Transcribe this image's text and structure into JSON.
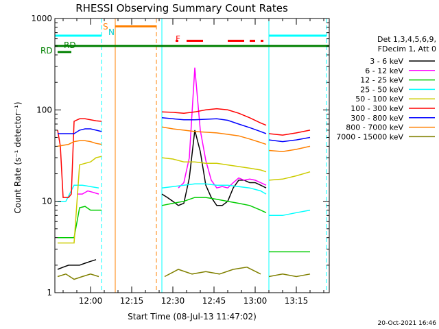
{
  "chart_data": {
    "type": "line",
    "title": "RHESSI Observing Summary Count Rates",
    "xlabel": "Start Time (08-Jul-13 11:47:02)",
    "ylabel": "Count Rate (s⁻¹ detector⁻¹)",
    "y_scale": "log",
    "xlim": [
      "11:47",
      "13:27"
    ],
    "ylim": [
      1,
      1000
    ],
    "x_ticks": [
      "12:00",
      "12:15",
      "12:30",
      "12:45",
      "13:00",
      "13:15"
    ],
    "y_ticks": [
      "1",
      "10",
      "100",
      "1000"
    ],
    "grid": false,
    "legend_position": "right",
    "legend_header": [
      "Det 1,3,4,5,6,9,",
      "FDecim 1, Att 0"
    ],
    "timestamp": "20-Oct-2021 16:46",
    "annotations": {
      "saa_letter": "S",
      "night_letter": "N",
      "flare_letter": "F",
      "rd_top": "RD",
      "rd_bottom": "RD"
    },
    "series": [
      {
        "name": "3 - 6 keV",
        "color": "#000000",
        "segments": [
          {
            "x": [
              "11:48",
              "11:50",
              "11:52",
              "11:54",
              "11:56",
              "11:58",
              "12:00",
              "12:02"
            ],
            "y": [
              1.8,
              1.9,
              2.0,
              2.0,
              2.0,
              2.1,
              2.2,
              2.3
            ]
          },
          {
            "x": [
              "12:26",
              "12:28",
              "12:30",
              "12:32",
              "12:34",
              "12:36",
              "12:38",
              "12:40",
              "12:42",
              "12:44",
              "12:46",
              "12:48",
              "12:50",
              "12:52",
              "12:54",
              "12:56",
              "12:58",
              "13:00",
              "13:02",
              "13:04"
            ],
            "y": [
              12.0,
              11.0,
              10.0,
              9.0,
              9.5,
              18.0,
              60.0,
              35.0,
              15.0,
              11.0,
              9.0,
              9.0,
              10.0,
              14.0,
              17.0,
              17.0,
              16.0,
              16.0,
              15.0,
              14.0
            ]
          }
        ]
      },
      {
        "name": "6 - 12 keV",
        "color": "#ff00ff",
        "segments": [
          {
            "x": [
              "11:55",
              "11:57",
              "11:59",
              "12:01",
              "12:03"
            ],
            "y": [
              12.0,
              12.0,
              13.0,
              12.5,
              12.0
            ]
          },
          {
            "x": [
              "12:32",
              "12:34",
              "12:36",
              "12:38",
              "12:40",
              "12:42",
              "12:44",
              "12:46",
              "12:48",
              "12:50",
              "12:52",
              "12:54",
              "12:56",
              "12:58",
              "13:00",
              "13:02",
              "13:04"
            ],
            "y": [
              14.0,
              16.0,
              30.0,
              290.0,
              60.0,
              28.0,
              17.0,
              14.0,
              14.5,
              14.0,
              16.0,
              18.0,
              17.0,
              17.5,
              17.0,
              16.0,
              15.0
            ]
          }
        ]
      },
      {
        "name": "12 - 25 keV",
        "color": "#00cc00",
        "segments": [
          {
            "x": [
              "11:48",
              "11:50",
              "11:52",
              "11:54",
              "11:56",
              "11:58",
              "12:00",
              "12:02",
              "12:04"
            ],
            "y": [
              4.0,
              4.0,
              4.0,
              4.0,
              8.5,
              8.8,
              8.0,
              8.0,
              8.0
            ]
          },
          {
            "x": [
              "12:26",
              "12:30",
              "12:34",
              "12:38",
              "12:42",
              "12:46",
              "12:50",
              "12:54",
              "12:58",
              "13:02",
              "13:04"
            ],
            "y": [
              9.0,
              9.5,
              10.0,
              11.0,
              11.0,
              10.5,
              10.0,
              9.5,
              9.0,
              8.0,
              7.5
            ]
          },
          {
            "x": [
              "13:05",
              "13:10",
              "13:15",
              "13:20"
            ],
            "y": [
              2.8,
              2.8,
              2.8,
              2.8
            ]
          }
        ]
      },
      {
        "name": "25 - 50 keV",
        "color": "#00ffff",
        "segments": [
          {
            "x": [
              "11:48",
              "11:51",
              "11:54",
              "11:57",
              "12:00",
              "12:03"
            ],
            "y": [
              10.0,
              10.0,
              15.0,
              15.0,
              14.5,
              14.0
            ]
          },
          {
            "x": [
              "12:26",
              "12:30",
              "12:34",
              "12:38",
              "12:42",
              "12:46",
              "12:50",
              "12:54",
              "12:58",
              "13:02",
              "13:04"
            ],
            "y": [
              14.0,
              14.5,
              15.0,
              15.5,
              15.5,
              15.0,
              15.0,
              14.5,
              14.0,
              13.0,
              12.0
            ]
          },
          {
            "x": [
              "13:05",
              "13:10",
              "13:15",
              "13:20"
            ],
            "y": [
              7.0,
              7.0,
              7.5,
              8.0
            ]
          }
        ]
      },
      {
        "name": "50 - 100 keV",
        "color": "#cccc00",
        "segments": [
          {
            "x": [
              "11:48",
              "11:50",
              "11:52",
              "11:54",
              "11:56",
              "11:58",
              "12:00",
              "12:02",
              "12:04"
            ],
            "y": [
              3.5,
              3.5,
              3.5,
              3.5,
              25.0,
              26.0,
              27.0,
              30.0,
              31.0
            ]
          },
          {
            "x": [
              "12:26",
              "12:30",
              "12:34",
              "12:38",
              "12:42",
              "12:46",
              "12:50",
              "12:54",
              "12:58",
              "13:02",
              "13:04"
            ],
            "y": [
              30.0,
              29.0,
              27.0,
              27.0,
              26.0,
              26.0,
              25.0,
              24.0,
              23.0,
              22.0,
              21.0
            ]
          },
          {
            "x": [
              "13:05",
              "13:10",
              "13:15",
              "13:20"
            ],
            "y": [
              17.0,
              17.5,
              19.0,
              21.0
            ]
          }
        ]
      },
      {
        "name": "100 - 300 keV",
        "color": "#ff0000",
        "segments": [
          {
            "x": [
              "11:48",
              "11:49",
              "11:50",
              "11:51",
              "11:52",
              "11:53",
              "11:54",
              "11:56",
              "11:58",
              "12:00",
              "12:02",
              "12:04"
            ],
            "y": [
              60.0,
              40.0,
              11.0,
              11.0,
              11.0,
              12.0,
              75.0,
              80.0,
              80.0,
              78.0,
              76.0,
              75.0
            ]
          },
          {
            "x": [
              "12:26",
              "12:30",
              "12:34",
              "12:38",
              "12:42",
              "12:46",
              "12:50",
              "12:54",
              "12:58",
              "13:02",
              "13:04"
            ],
            "y": [
              95.0,
              94.0,
              92.0,
              95.0,
              100.0,
              103.0,
              100.0,
              92.0,
              82.0,
              72.0,
              68.0
            ]
          },
          {
            "x": [
              "13:05",
              "13:10",
              "13:15",
              "13:20"
            ],
            "y": [
              55.0,
              53.0,
              56.0,
              60.0
            ]
          }
        ]
      },
      {
        "name": "300 - 800 keV",
        "color": "#0000ff",
        "segments": [
          {
            "x": [
              "11:48",
              "11:50",
              "11:52",
              "11:54",
              "11:56",
              "11:58",
              "12:00",
              "12:02",
              "12:04"
            ],
            "y": [
              55.0,
              55.0,
              55.0,
              55.0,
              60.0,
              62.0,
              62.0,
              60.0,
              58.0
            ]
          },
          {
            "x": [
              "12:26",
              "12:30",
              "12:34",
              "12:38",
              "12:42",
              "12:46",
              "12:50",
              "12:54",
              "12:58",
              "13:02",
              "13:04"
            ],
            "y": [
              82.0,
              80.0,
              78.0,
              78.0,
              79.0,
              80.0,
              77.0,
              70.0,
              64.0,
              58.0,
              55.0
            ]
          },
          {
            "x": [
              "13:05",
              "13:10",
              "13:15",
              "13:20"
            ],
            "y": [
              47.0,
              45.0,
              47.0,
              50.0
            ]
          }
        ]
      },
      {
        "name": "800 - 7000 keV",
        "color": "#ff8000",
        "segments": [
          {
            "x": [
              "11:48",
              "11:50",
              "11:52",
              "11:54",
              "11:56",
              "11:58",
              "12:00",
              "12:02",
              "12:04"
            ],
            "y": [
              40.0,
              41.0,
              42.0,
              45.0,
              46.0,
              46.0,
              45.0,
              43.0,
              42.0
            ]
          },
          {
            "x": [
              "12:26",
              "12:30",
              "12:34",
              "12:38",
              "12:42",
              "12:46",
              "12:50",
              "12:54",
              "12:58",
              "13:02",
              "13:04"
            ],
            "y": [
              65.0,
              62.0,
              60.0,
              58.0,
              57.0,
              56.0,
              54.0,
              52.0,
              48.0,
              44.0,
              42.0
            ]
          },
          {
            "x": [
              "13:05",
              "13:10",
              "13:15",
              "13:20"
            ],
            "y": [
              36.0,
              35.0,
              37.0,
              40.0
            ]
          }
        ]
      },
      {
        "name": "7000 - 15000 keV",
        "color": "#808000",
        "segments": [
          {
            "x": [
              "11:48",
              "11:51",
              "11:54",
              "11:57",
              "12:00",
              "12:03"
            ],
            "y": [
              1.5,
              1.6,
              1.4,
              1.5,
              1.6,
              1.5
            ]
          },
          {
            "x": [
              "12:27",
              "12:32",
              "12:37",
              "12:42",
              "12:47",
              "12:52",
              "12:57",
              "13:02"
            ],
            "y": [
              1.5,
              1.8,
              1.6,
              1.7,
              1.6,
              1.8,
              1.9,
              1.6
            ]
          },
          {
            "x": [
              "13:05",
              "13:10",
              "13:15",
              "13:20"
            ],
            "y": [
              1.5,
              1.6,
              1.5,
              1.6
            ]
          }
        ]
      }
    ],
    "status_bars": [
      {
        "label": "rd_top",
        "color": "#008000",
        "y": 500,
        "x": [
          [
            "11:47",
            "13:27"
          ]
        ]
      },
      {
        "label": "rd_bottom",
        "color": "#008000",
        "y": 430,
        "x": [
          [
            "11:48",
            "11:53"
          ]
        ]
      },
      {
        "label": "night",
        "color": "#00ffff",
        "y": 650,
        "x": [
          [
            "11:47",
            "12:04"
          ],
          [
            "13:05",
            "13:26"
          ]
        ]
      },
      {
        "label": "saa",
        "color": "#ff8000",
        "y": 820,
        "x": [
          [
            "12:09",
            "12:24"
          ]
        ]
      },
      {
        "label": "flare",
        "color": "#ff0000",
        "y": 570,
        "x": [
          [
            "12:31",
            "12:32"
          ],
          [
            "12:35",
            "12:41"
          ],
          [
            "12:50",
            "12:56"
          ],
          [
            "12:58",
            "13:00"
          ],
          [
            "13:02",
            "13:03"
          ]
        ]
      }
    ],
    "vertical_markers": [
      {
        "x": "11:47",
        "color": "#00ffff",
        "style": "solid"
      },
      {
        "x": "12:04",
        "color": "#00ffff",
        "style": "dashed"
      },
      {
        "x": "12:09",
        "color": "#ff8000",
        "style": "solid"
      },
      {
        "x": "12:24",
        "color": "#ff8000",
        "style": "dashed"
      },
      {
        "x": "12:26",
        "color": "#00ffff",
        "style": "solid"
      },
      {
        "x": "13:05",
        "color": "#00ffff",
        "style": "solid"
      },
      {
        "x": "13:26",
        "color": "#00ffff",
        "style": "dashed"
      }
    ]
  }
}
